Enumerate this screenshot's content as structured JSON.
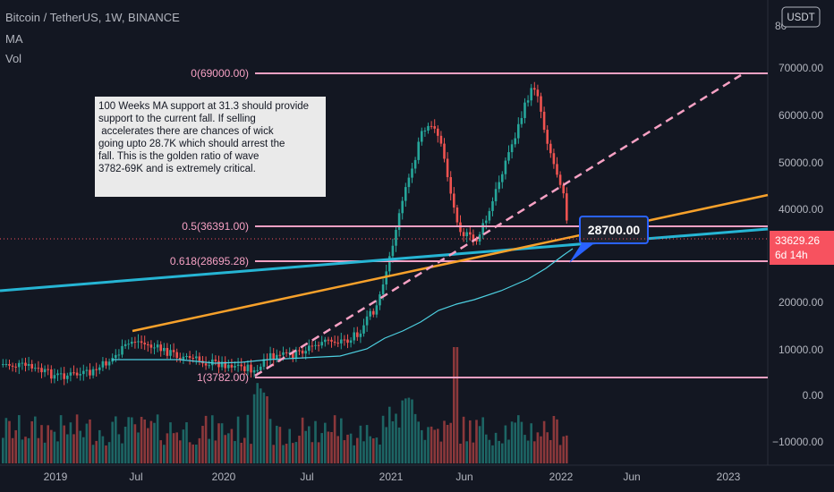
{
  "header": {
    "title": "Bitcoin / TetherUS, 1W, BINANCE",
    "indicator_ma": "MA",
    "indicator_vol": "Vol"
  },
  "currency_badge": "USDT",
  "price_axis": {
    "ticks": [
      "70000.00",
      "60000.00",
      "50000.00",
      "40000.00",
      "20000.00",
      "10000.00",
      "0.00",
      "−10000.00"
    ],
    "corner_label": "80"
  },
  "time_axis": {
    "ticks": [
      "2019",
      "Jul",
      "2020",
      "Jul",
      "2021",
      "Jun",
      "2022",
      "Jun",
      "2023"
    ]
  },
  "fib_levels": [
    {
      "label": "0(69000.00)"
    },
    {
      "label": "0.5(36391.00)"
    },
    {
      "label": "0.618(28695.28)"
    },
    {
      "label": "1(3782.00)"
    }
  ],
  "annotation": {
    "lines": [
      "100 Weeks MA support at 31.3 should provide",
      "support to the current fall. If selling",
      " accelerates there are chances of wick",
      "going upto 28.7K which should arrest the",
      "fall. This is the golden ratio of wave",
      "3782-69K and is extremely critical."
    ]
  },
  "callout": {
    "text": "28700.00"
  },
  "current_price": {
    "price": "33629.26",
    "countdown": "6d 14h",
    "color": "#f7525f"
  },
  "colors": {
    "background": "#131722",
    "fib_line": "#f7a1c4",
    "trend_orange": "#f7a12b",
    "trend_blue": "#26b5d4",
    "ma_line": "#4dd0e1",
    "up_candle": "#26a69a",
    "down_candle": "#ef5350",
    "callout_bg": "#2962ff"
  }
}
